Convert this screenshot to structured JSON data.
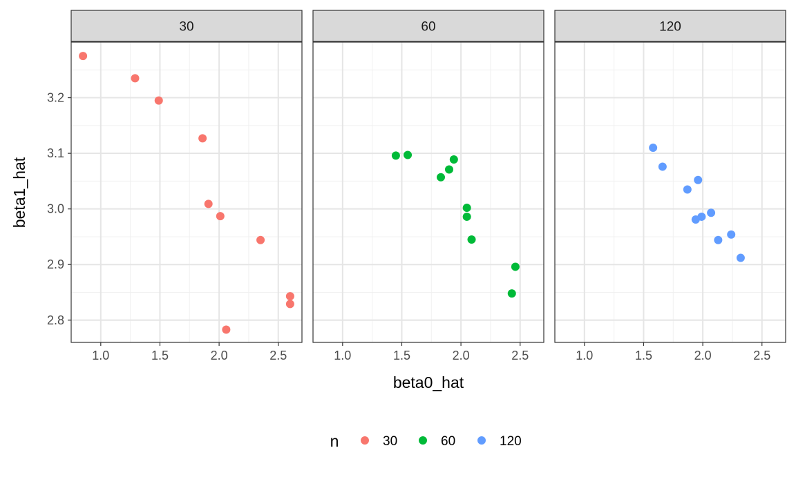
{
  "chart_data": {
    "type": "scatter",
    "xlabel": "beta0_hat",
    "ylabel": "beta1_hat",
    "xlim": [
      0.75,
      2.7
    ],
    "ylim": [
      2.76,
      3.3
    ],
    "x_ticks": [
      1.0,
      1.5,
      2.0,
      2.5
    ],
    "x_tick_labels": [
      "1.0",
      "1.5",
      "2.0",
      "2.5"
    ],
    "y_ticks": [
      2.8,
      2.9,
      3.0,
      3.1,
      3.2
    ],
    "y_tick_labels": [
      "2.8",
      "2.9",
      "3.0",
      "3.1",
      "3.2"
    ],
    "grid": true,
    "legend": {
      "title": "n",
      "placement": "bottom",
      "entries": [
        {
          "label": "30",
          "color": "#F8766D"
        },
        {
          "label": "60",
          "color": "#00BA38"
        },
        {
          "label": "120",
          "color": "#619CFF"
        }
      ]
    },
    "panels": [
      {
        "label": "30",
        "color": "#F8766D",
        "points": [
          {
            "x": 0.85,
            "y": 3.275
          },
          {
            "x": 1.29,
            "y": 3.235
          },
          {
            "x": 1.49,
            "y": 3.195
          },
          {
            "x": 1.86,
            "y": 3.127
          },
          {
            "x": 1.91,
            "y": 3.009
          },
          {
            "x": 2.01,
            "y": 2.987
          },
          {
            "x": 2.35,
            "y": 2.944
          },
          {
            "x": 2.6,
            "y": 2.843
          },
          {
            "x": 2.6,
            "y": 2.829
          },
          {
            "x": 2.06,
            "y": 2.783
          }
        ]
      },
      {
        "label": "60",
        "color": "#00BA38",
        "points": [
          {
            "x": 1.45,
            "y": 3.096
          },
          {
            "x": 1.55,
            "y": 3.097
          },
          {
            "x": 1.94,
            "y": 3.089
          },
          {
            "x": 1.9,
            "y": 3.071
          },
          {
            "x": 1.83,
            "y": 3.057
          },
          {
            "x": 2.05,
            "y": 3.002
          },
          {
            "x": 2.05,
            "y": 2.986
          },
          {
            "x": 2.09,
            "y": 2.945
          },
          {
            "x": 2.46,
            "y": 2.896
          },
          {
            "x": 2.43,
            "y": 2.848
          }
        ]
      },
      {
        "label": "120",
        "color": "#619CFF",
        "points": [
          {
            "x": 1.58,
            "y": 3.11
          },
          {
            "x": 1.66,
            "y": 3.076
          },
          {
            "x": 1.96,
            "y": 3.052
          },
          {
            "x": 1.87,
            "y": 3.035
          },
          {
            "x": 2.07,
            "y": 2.993
          },
          {
            "x": 1.99,
            "y": 2.986
          },
          {
            "x": 1.94,
            "y": 2.981
          },
          {
            "x": 2.24,
            "y": 2.954
          },
          {
            "x": 2.13,
            "y": 2.944
          },
          {
            "x": 2.32,
            "y": 2.912
          }
        ]
      }
    ]
  }
}
